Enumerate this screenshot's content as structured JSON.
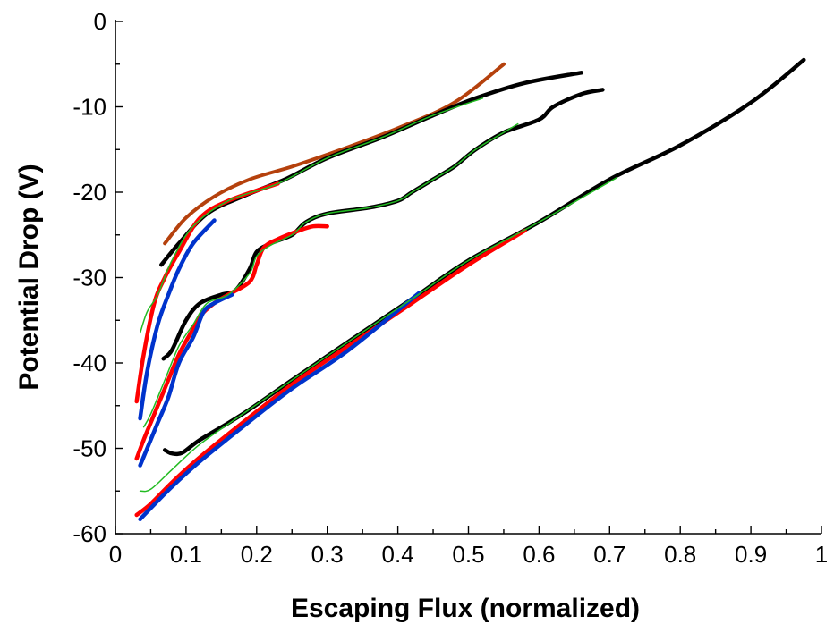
{
  "chart_data": {
    "type": "line",
    "title": "",
    "xlabel": "Escaping Flux (normalized)",
    "ylabel": "Potential Drop (V)",
    "xlim": [
      0,
      1
    ],
    "ylim": [
      -60,
      0
    ],
    "x_ticks": [
      0,
      0.1,
      0.2,
      0.3,
      0.4,
      0.5,
      0.6,
      0.7,
      0.8,
      0.9,
      1
    ],
    "x_tick_labels": [
      "0",
      "0.1",
      "0.2",
      "0.3",
      "0.4",
      "0.5",
      "0.6",
      "0.7",
      "0.8",
      "0.9",
      "1"
    ],
    "y_ticks": [
      0,
      -10,
      -20,
      -30,
      -40,
      -50,
      -60
    ],
    "y_tick_labels": [
      "0",
      "-10",
      "-20",
      "-30",
      "-40",
      "-50",
      "-60"
    ],
    "grid": false,
    "legend": "none",
    "series": [
      {
        "color": "#b5410d",
        "width": 4,
        "points": [
          [
            0.07,
            -26
          ],
          [
            0.1,
            -23
          ],
          [
            0.14,
            -20.5
          ],
          [
            0.19,
            -18.5
          ],
          [
            0.25,
            -17
          ],
          [
            0.32,
            -15
          ],
          [
            0.4,
            -12.5
          ],
          [
            0.48,
            -9.5
          ],
          [
            0.55,
            -5
          ]
        ]
      },
      {
        "color": "#000000",
        "width": 4.5,
        "points": [
          [
            0.065,
            -28.5
          ],
          [
            0.09,
            -26
          ],
          [
            0.13,
            -22.5
          ],
          [
            0.18,
            -20.5
          ],
          [
            0.24,
            -18.5
          ],
          [
            0.3,
            -16
          ],
          [
            0.38,
            -13.5
          ],
          [
            0.45,
            -11
          ],
          [
            0.51,
            -9
          ],
          [
            0.58,
            -7.2
          ],
          [
            0.66,
            -6
          ]
        ]
      },
      {
        "color": "#ff0000",
        "width": 4.5,
        "points": [
          [
            0.03,
            -44.5
          ],
          [
            0.04,
            -39
          ],
          [
            0.055,
            -33
          ],
          [
            0.07,
            -30
          ],
          [
            0.09,
            -27
          ],
          [
            0.12,
            -23
          ],
          [
            0.16,
            -21
          ],
          [
            0.23,
            -19
          ]
        ]
      },
      {
        "color": "#0033cc",
        "width": 4.5,
        "points": [
          [
            0.035,
            -46.5
          ],
          [
            0.045,
            -41
          ],
          [
            0.06,
            -35.5
          ],
          [
            0.075,
            -32
          ],
          [
            0.09,
            -29
          ],
          [
            0.11,
            -26
          ],
          [
            0.14,
            -23.3
          ]
        ]
      },
      {
        "color": "#22bb22",
        "width": 1.5,
        "points": [
          [
            0.035,
            -36.5
          ],
          [
            0.045,
            -34
          ],
          [
            0.06,
            -32
          ],
          [
            0.08,
            -28
          ],
          [
            0.11,
            -24
          ],
          [
            0.16,
            -21
          ],
          [
            0.23,
            -19
          ],
          [
            0.3,
            -16
          ],
          [
            0.38,
            -13.5
          ],
          [
            0.45,
            -11
          ],
          [
            0.52,
            -9
          ]
        ]
      },
      {
        "color": "#000000",
        "width": 4.5,
        "points": [
          [
            0.068,
            -39.5
          ],
          [
            0.08,
            -38.5
          ],
          [
            0.1,
            -35
          ],
          [
            0.12,
            -33
          ],
          [
            0.15,
            -32
          ],
          [
            0.17,
            -31.5
          ],
          [
            0.19,
            -29
          ],
          [
            0.2,
            -27
          ],
          [
            0.22,
            -26
          ],
          [
            0.25,
            -25
          ],
          [
            0.27,
            -23.5
          ],
          [
            0.3,
            -22.5
          ],
          [
            0.36,
            -21.8
          ],
          [
            0.4,
            -21
          ],
          [
            0.42,
            -20
          ],
          [
            0.45,
            -18.5
          ],
          [
            0.48,
            -17
          ],
          [
            0.51,
            -15
          ],
          [
            0.55,
            -13
          ],
          [
            0.6,
            -11.5
          ],
          [
            0.62,
            -10
          ],
          [
            0.66,
            -8.5
          ],
          [
            0.69,
            -8
          ]
        ]
      },
      {
        "color": "#ff0000",
        "width": 4.5,
        "points": [
          [
            0.03,
            -51.2
          ],
          [
            0.04,
            -49
          ],
          [
            0.055,
            -46
          ],
          [
            0.07,
            -43
          ],
          [
            0.09,
            -39
          ],
          [
            0.11,
            -36
          ],
          [
            0.12,
            -34.5
          ],
          [
            0.14,
            -33
          ],
          [
            0.16,
            -32
          ],
          [
            0.19,
            -30.5
          ],
          [
            0.2,
            -28.5
          ],
          [
            0.21,
            -26.5
          ],
          [
            0.23,
            -25.5
          ],
          [
            0.26,
            -24.5
          ],
          [
            0.28,
            -24
          ],
          [
            0.3,
            -24
          ]
        ]
      },
      {
        "color": "#0033cc",
        "width": 4.5,
        "points": [
          [
            0.035,
            -52
          ],
          [
            0.045,
            -50
          ],
          [
            0.06,
            -47
          ],
          [
            0.075,
            -44
          ],
          [
            0.09,
            -40
          ],
          [
            0.11,
            -37
          ],
          [
            0.125,
            -34
          ],
          [
            0.14,
            -33
          ],
          [
            0.165,
            -32
          ]
        ]
      },
      {
        "color": "#22bb22",
        "width": 1.5,
        "points": [
          [
            0.04,
            -47.5
          ],
          [
            0.05,
            -46
          ],
          [
            0.07,
            -42
          ],
          [
            0.09,
            -38
          ],
          [
            0.11,
            -35.5
          ],
          [
            0.13,
            -33
          ],
          [
            0.16,
            -32
          ],
          [
            0.19,
            -29.5
          ],
          [
            0.2,
            -27.5
          ],
          [
            0.22,
            -26.2
          ],
          [
            0.25,
            -25
          ],
          [
            0.27,
            -23.5
          ],
          [
            0.3,
            -22.5
          ],
          [
            0.36,
            -21.8
          ],
          [
            0.4,
            -21
          ],
          [
            0.42,
            -20
          ],
          [
            0.45,
            -18.5
          ],
          [
            0.48,
            -17
          ],
          [
            0.51,
            -15
          ],
          [
            0.55,
            -13
          ],
          [
            0.57,
            -12
          ]
        ]
      },
      {
        "color": "#000000",
        "width": 4.5,
        "points": [
          [
            0.07,
            -50.2
          ],
          [
            0.08,
            -50.6
          ],
          [
            0.095,
            -50.5
          ],
          [
            0.12,
            -49
          ],
          [
            0.18,
            -46
          ],
          [
            0.25,
            -42
          ],
          [
            0.33,
            -37.5
          ],
          [
            0.42,
            -32.5
          ],
          [
            0.5,
            -28
          ],
          [
            0.6,
            -23.5
          ],
          [
            0.7,
            -18.5
          ],
          [
            0.8,
            -14.5
          ],
          [
            0.9,
            -9.5
          ],
          [
            0.975,
            -4.5
          ]
        ]
      },
      {
        "color": "#ff0000",
        "width": 4.5,
        "points": [
          [
            0.03,
            -57.8
          ],
          [
            0.05,
            -56.5
          ],
          [
            0.08,
            -54
          ],
          [
            0.12,
            -51
          ],
          [
            0.18,
            -47
          ],
          [
            0.25,
            -42.5
          ],
          [
            0.33,
            -38
          ],
          [
            0.42,
            -33
          ],
          [
            0.5,
            -28.5
          ],
          [
            0.58,
            -24.5
          ]
        ]
      },
      {
        "color": "#0033cc",
        "width": 4.5,
        "points": [
          [
            0.035,
            -58.3
          ],
          [
            0.05,
            -57
          ],
          [
            0.08,
            -54.5
          ],
          [
            0.12,
            -51.5
          ],
          [
            0.18,
            -47.5
          ],
          [
            0.25,
            -43
          ],
          [
            0.33,
            -38.5
          ],
          [
            0.43,
            -31.8
          ]
        ]
      },
      {
        "color": "#22bb22",
        "width": 1.5,
        "points": [
          [
            0.035,
            -55
          ],
          [
            0.05,
            -54.8
          ],
          [
            0.08,
            -52.5
          ],
          [
            0.12,
            -49.5
          ],
          [
            0.18,
            -46
          ],
          [
            0.25,
            -42
          ],
          [
            0.33,
            -37.5
          ],
          [
            0.42,
            -32.5
          ],
          [
            0.5,
            -28
          ],
          [
            0.6,
            -23.5
          ],
          [
            0.71,
            -18.3
          ]
        ]
      }
    ]
  }
}
